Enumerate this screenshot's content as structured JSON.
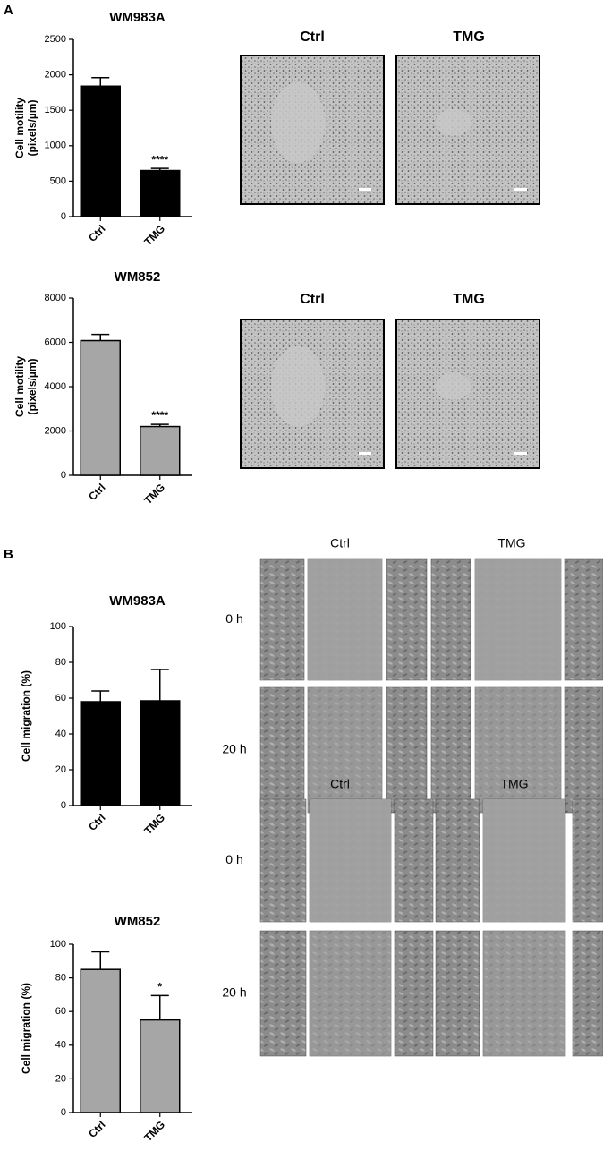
{
  "panel_labels": [
    "A",
    "B"
  ],
  "chart_data": [
    {
      "type": "bar",
      "title": "WM983A",
      "y_label": [
        "Cell motility",
        "(pixels/µm)"
      ],
      "categories": [
        "Ctrl",
        "TMG"
      ],
      "values": [
        1840,
        650
      ],
      "errors": [
        120,
        30
      ],
      "significance": [
        null,
        "****"
      ],
      "color": "#000000",
      "ylim": [
        0,
        2500
      ],
      "yticks": [
        0,
        500,
        1000,
        1500,
        2000,
        2500
      ]
    },
    {
      "type": "bar",
      "title": "WM852",
      "y_label": [
        "Cell motility",
        "(pixels/µm)"
      ],
      "categories": [
        "Ctrl",
        "TMG"
      ],
      "values": [
        6080,
        2200
      ],
      "errors": [
        280,
        100
      ],
      "significance": [
        null,
        "****"
      ],
      "color": "#a6a6a6",
      "ylim": [
        0,
        8000
      ],
      "yticks": [
        0,
        2000,
        4000,
        6000,
        8000
      ]
    },
    {
      "type": "bar",
      "title": "WM983A",
      "y_label": [
        "Cell migration (%)"
      ],
      "categories": [
        "Ctrl",
        "TMG"
      ],
      "values": [
        58,
        58.5
      ],
      "errors": [
        6,
        17.5
      ],
      "significance": [
        null,
        null
      ],
      "color": "#000000",
      "ylim": [
        0,
        100
      ],
      "yticks": [
        0,
        20,
        40,
        60,
        80,
        100
      ]
    },
    {
      "type": "bar",
      "title": "WM852",
      "y_label": [
        "Cell migration (%)"
      ],
      "categories": [
        "Ctrl",
        "TMG"
      ],
      "values": [
        85,
        55
      ],
      "errors": [
        10.5,
        14.5
      ],
      "significance": [
        null,
        "*"
      ],
      "color": "#a6a6a6",
      "ylim": [
        0,
        100
      ],
      "yticks": [
        0,
        20,
        40,
        60,
        80,
        100
      ]
    }
  ],
  "image_panels": [
    {
      "columns": [
        "Ctrl",
        "TMG"
      ]
    },
    {
      "columns": [
        "Ctrl",
        "TMG"
      ]
    },
    {
      "columns": [
        "Ctrl",
        "TMG"
      ],
      "rows": [
        "0 h",
        "20 h"
      ]
    },
    {
      "columns": [
        "Ctrl",
        "TMG"
      ],
      "rows": [
        "0 h",
        "20 h"
      ]
    }
  ]
}
